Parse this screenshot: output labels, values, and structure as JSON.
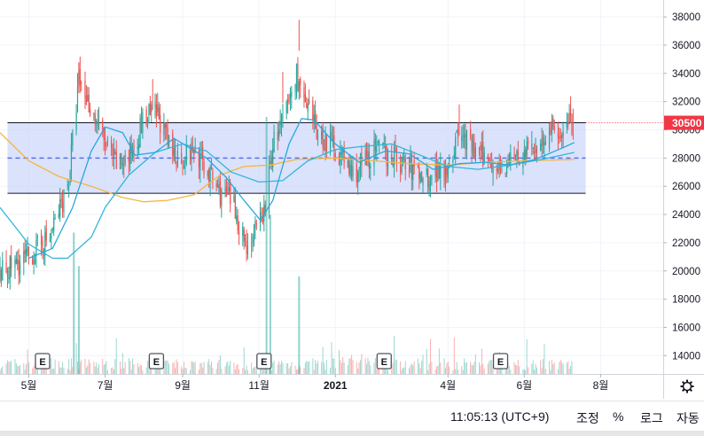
{
  "chart_data": {
    "type": "candlestick",
    "y_axis": {
      "ticks": [
        38000,
        36000,
        34000,
        32000,
        30000,
        28000,
        26000,
        24000,
        22000,
        20000,
        18000,
        16000,
        14000
      ],
      "labels": [
        "38000",
        "36000",
        "34000",
        "32000",
        "30000",
        "28000",
        "26000",
        "24000",
        "22000",
        "20000",
        "18000",
        "16000",
        "14000"
      ],
      "range": [
        12700,
        39200
      ],
      "position": "right"
    },
    "x_axis": {
      "ticks": [
        {
          "label": "5월",
          "date": "2020-05-01"
        },
        {
          "label": "7월",
          "date": "2020-07-01"
        },
        {
          "label": "9월",
          "date": "2020-09-01"
        },
        {
          "label": "11월",
          "date": "2020-11-01"
        },
        {
          "label": "2021",
          "date": "2021-01-01"
        },
        {
          "label": "4월",
          "date": "2021-04-01"
        },
        {
          "label": "6월",
          "date": "2021-06-01"
        },
        {
          "label": "8월",
          "date": "2021-08-01"
        }
      ],
      "range": [
        "2020-04-08",
        "2021-09-20"
      ]
    },
    "last_price": {
      "value": 30500,
      "label": "30500",
      "color": "#f23645"
    },
    "range_box": {
      "upper": 30500,
      "lower": 25500,
      "mid": 28000,
      "start": "2020-04-14",
      "end": "2021-07-20",
      "fill": "#cdd8fb",
      "mid_line_color": "#5b6fe6"
    },
    "earnings_markers": {
      "label": "E",
      "dates": [
        "2020-05-12",
        "2020-08-11",
        "2020-11-05",
        "2021-02-09",
        "2021-05-13"
      ]
    },
    "price_path": [
      {
        "date": "2020-04-08",
        "value": 19800
      },
      {
        "date": "2020-05-01",
        "value": 21000
      },
      {
        "date": "2020-05-18",
        "value": 22400
      },
      {
        "date": "2020-05-26",
        "value": 24500
      },
      {
        "date": "2020-06-02",
        "value": 26500
      },
      {
        "date": "2020-06-10",
        "value": 33500
      },
      {
        "date": "2020-06-20",
        "value": 31500
      },
      {
        "date": "2020-07-01",
        "value": 29000
      },
      {
        "date": "2020-07-10",
        "value": 27500
      },
      {
        "date": "2020-07-20",
        "value": 28000
      },
      {
        "date": "2020-08-01",
        "value": 30800
      },
      {
        "date": "2020-08-12",
        "value": 31200
      },
      {
        "date": "2020-08-22",
        "value": 28500
      },
      {
        "date": "2020-09-01",
        "value": 28000
      },
      {
        "date": "2020-09-10",
        "value": 28600
      },
      {
        "date": "2020-09-20",
        "value": 27200
      },
      {
        "date": "2020-10-01",
        "value": 25500
      },
      {
        "date": "2020-10-10",
        "value": 25000
      },
      {
        "date": "2020-10-22",
        "value": 21800
      },
      {
        "date": "2020-10-30",
        "value": 22800
      },
      {
        "date": "2020-11-06",
        "value": 24500
      },
      {
        "date": "2020-11-12",
        "value": 29000
      },
      {
        "date": "2020-11-22",
        "value": 31000
      },
      {
        "date": "2020-12-01",
        "value": 34000
      },
      {
        "date": "2020-12-08",
        "value": 31500
      },
      {
        "date": "2020-12-20",
        "value": 29500
      },
      {
        "date": "2021-01-01",
        "value": 28800
      },
      {
        "date": "2021-01-15",
        "value": 26800
      },
      {
        "date": "2021-02-01",
        "value": 28500
      },
      {
        "date": "2021-02-15",
        "value": 28200
      },
      {
        "date": "2021-03-01",
        "value": 27300
      },
      {
        "date": "2021-03-15",
        "value": 26700
      },
      {
        "date": "2021-04-01",
        "value": 27600
      },
      {
        "date": "2021-04-10",
        "value": 29800
      },
      {
        "date": "2021-04-25",
        "value": 28200
      },
      {
        "date": "2021-05-15",
        "value": 27500
      },
      {
        "date": "2021-06-01",
        "value": 28200
      },
      {
        "date": "2021-06-20",
        "value": 29600
      },
      {
        "date": "2021-07-01",
        "value": 30000
      },
      {
        "date": "2021-07-11",
        "value": 30600
      }
    ],
    "ma_short": [
      {
        "date": "2020-05-01",
        "value": 20900
      },
      {
        "date": "2020-05-20",
        "value": 21600
      },
      {
        "date": "2020-06-05",
        "value": 24500
      },
      {
        "date": "2020-06-20",
        "value": 28500
      },
      {
        "date": "2020-07-01",
        "value": 30200
      },
      {
        "date": "2020-07-15",
        "value": 29800
      },
      {
        "date": "2020-07-25",
        "value": 28200
      },
      {
        "date": "2020-08-10",
        "value": 28400
      },
      {
        "date": "2020-08-25",
        "value": 29400
      },
      {
        "date": "2020-09-05",
        "value": 28800
      },
      {
        "date": "2020-09-20",
        "value": 28000
      },
      {
        "date": "2020-10-05",
        "value": 26700
      },
      {
        "date": "2020-10-20",
        "value": 25000
      },
      {
        "date": "2020-11-02",
        "value": 23600
      },
      {
        "date": "2020-11-12",
        "value": 25000
      },
      {
        "date": "2020-11-25",
        "value": 29000
      },
      {
        "date": "2020-12-05",
        "value": 30800
      },
      {
        "date": "2020-12-15",
        "value": 30700
      },
      {
        "date": "2021-01-01",
        "value": 29000
      },
      {
        "date": "2021-01-20",
        "value": 27700
      },
      {
        "date": "2021-02-10",
        "value": 28500
      },
      {
        "date": "2021-03-01",
        "value": 28300
      },
      {
        "date": "2021-03-20",
        "value": 27200
      },
      {
        "date": "2021-04-10",
        "value": 27600
      },
      {
        "date": "2021-05-01",
        "value": 27700
      },
      {
        "date": "2021-05-20",
        "value": 27500
      },
      {
        "date": "2021-06-10",
        "value": 27900
      },
      {
        "date": "2021-07-01",
        "value": 28700
      },
      {
        "date": "2021-07-11",
        "value": 29100
      }
    ],
    "ma_mid": [
      {
        "date": "2020-04-08",
        "value": 24500
      },
      {
        "date": "2020-05-01",
        "value": 21900
      },
      {
        "date": "2020-05-20",
        "value": 20900
      },
      {
        "date": "2020-06-01",
        "value": 20900
      },
      {
        "date": "2020-06-20",
        "value": 22400
      },
      {
        "date": "2020-07-01",
        "value": 24500
      },
      {
        "date": "2020-07-20",
        "value": 26800
      },
      {
        "date": "2020-08-10",
        "value": 28400
      },
      {
        "date": "2020-09-01",
        "value": 29000
      },
      {
        "date": "2020-09-20",
        "value": 28500
      },
      {
        "date": "2020-10-10",
        "value": 27000
      },
      {
        "date": "2020-11-01",
        "value": 26300
      },
      {
        "date": "2020-11-20",
        "value": 26400
      },
      {
        "date": "2020-12-10",
        "value": 27800
      },
      {
        "date": "2021-01-01",
        "value": 28600
      },
      {
        "date": "2021-01-20",
        "value": 28800
      },
      {
        "date": "2021-02-15",
        "value": 29000
      },
      {
        "date": "2021-03-10",
        "value": 28200
      },
      {
        "date": "2021-04-01",
        "value": 27400
      },
      {
        "date": "2021-04-25",
        "value": 27200
      },
      {
        "date": "2021-05-20",
        "value": 27500
      },
      {
        "date": "2021-06-15",
        "value": 27900
      },
      {
        "date": "2021-07-11",
        "value": 28400
      }
    ],
    "ma_long": [
      {
        "date": "2020-04-08",
        "value": 29800
      },
      {
        "date": "2020-05-01",
        "value": 27800
      },
      {
        "date": "2020-05-25",
        "value": 26700
      },
      {
        "date": "2020-06-20",
        "value": 26000
      },
      {
        "date": "2020-07-15",
        "value": 25200
      },
      {
        "date": "2020-08-01",
        "value": 24900
      },
      {
        "date": "2020-08-20",
        "value": 25000
      },
      {
        "date": "2020-09-10",
        "value": 25400
      },
      {
        "date": "2020-10-01",
        "value": 26800
      },
      {
        "date": "2020-10-20",
        "value": 27400
      },
      {
        "date": "2020-11-10",
        "value": 27500
      },
      {
        "date": "2020-12-01",
        "value": 27900
      },
      {
        "date": "2021-01-01",
        "value": 28000
      },
      {
        "date": "2021-02-01",
        "value": 27800
      },
      {
        "date": "2021-03-01",
        "value": 27600
      },
      {
        "date": "2021-04-01",
        "value": 27500
      },
      {
        "date": "2021-05-01",
        "value": 27700
      },
      {
        "date": "2021-06-01",
        "value": 27800
      },
      {
        "date": "2021-07-11",
        "value": 27900
      }
    ],
    "volume_spikes": [
      {
        "date": "2020-06-06",
        "value": 0.55
      },
      {
        "date": "2020-06-10",
        "value": 0.42
      },
      {
        "date": "2020-11-07",
        "value": 1.0
      },
      {
        "date": "2020-11-10",
        "value": 0.62
      },
      {
        "date": "2020-12-03",
        "value": 0.38
      }
    ],
    "colors": {
      "up": "#26a69a",
      "down": "#ef5350",
      "ma_short": "#2aa7e0",
      "ma_mid": "#33b6d9",
      "ma_long": "#f5b53f"
    }
  },
  "status_bar": {
    "time": "11:05:13 (UTC+9)",
    "scale_label": "조정",
    "percent_label": "%",
    "log_label": "로그",
    "auto_label": "자동"
  }
}
